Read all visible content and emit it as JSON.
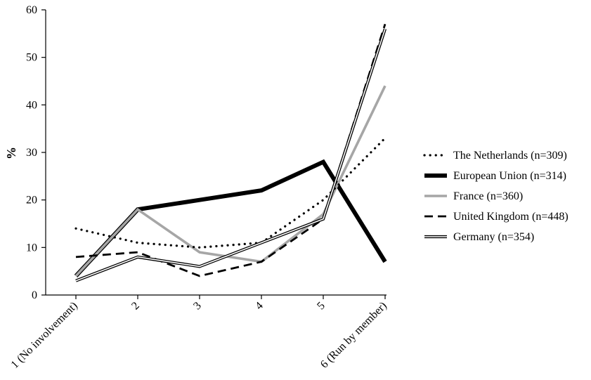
{
  "chart_data": {
    "type": "line",
    "title": "",
    "xlabel": "",
    "ylabel": "%",
    "ylim": [
      0,
      60
    ],
    "yticks": [
      0,
      10,
      20,
      30,
      40,
      50,
      60
    ],
    "categories": [
      "1 (No involvement)",
      "2",
      "3",
      "4",
      "5",
      "6 (Run by member)"
    ],
    "grid": false,
    "legend_position": "right",
    "series": [
      {
        "name": "The Netherlands (n=309)",
        "style": "dotted",
        "color": "#000000",
        "values": [
          14,
          11,
          10,
          11,
          20,
          33
        ]
      },
      {
        "name": "European Union (n=314)",
        "style": "thick",
        "color": "#000000",
        "values": [
          4,
          18,
          20,
          22,
          28,
          7
        ]
      },
      {
        "name": "France (n=360)",
        "style": "gray",
        "color": "#a6a6a6",
        "values": [
          4,
          18,
          9,
          7,
          17,
          44
        ]
      },
      {
        "name": "United Kingdom (n=448)",
        "style": "dashed",
        "color": "#000000",
        "values": [
          8,
          9,
          4,
          7,
          16,
          57
        ]
      },
      {
        "name": "Germany (n=354)",
        "style": "double",
        "color": "#000000",
        "values": [
          3,
          8,
          6,
          11,
          16,
          56
        ]
      }
    ]
  }
}
